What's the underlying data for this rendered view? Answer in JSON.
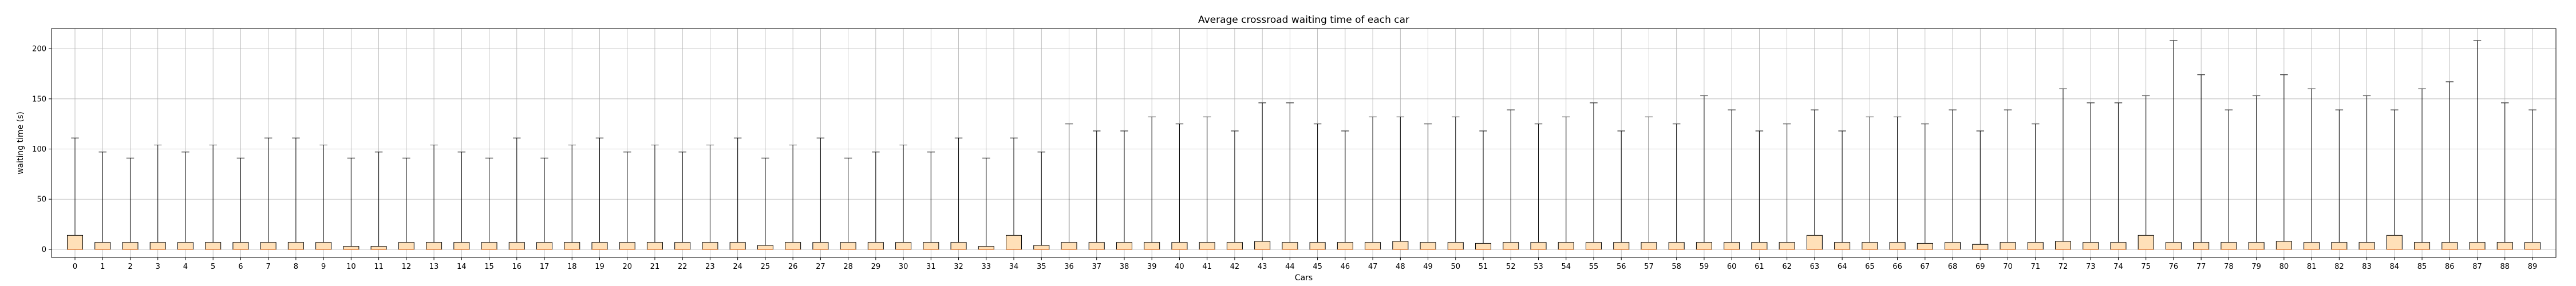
{
  "chart_data": {
    "type": "boxplot",
    "title": "Average crossroad waiting time of each car",
    "xlabel": "Cars",
    "ylabel": "waiting time (s)",
    "ylim": [
      -8,
      220
    ],
    "yticks": [
      0,
      50,
      100,
      150,
      200
    ],
    "grid": true,
    "box_color": "#ffe0b8",
    "median_color": "#e0803c",
    "categories": [
      "0",
      "1",
      "2",
      "3",
      "4",
      "5",
      "6",
      "7",
      "8",
      "9",
      "10",
      "11",
      "12",
      "13",
      "14",
      "15",
      "16",
      "17",
      "18",
      "19",
      "20",
      "21",
      "22",
      "23",
      "24",
      "25",
      "26",
      "27",
      "28",
      "29",
      "30",
      "31",
      "32",
      "33",
      "34",
      "35",
      "36",
      "37",
      "38",
      "39",
      "40",
      "41",
      "42",
      "43",
      "44",
      "45",
      "46",
      "47",
      "48",
      "49",
      "50",
      "51",
      "52",
      "53",
      "54",
      "55",
      "56",
      "57",
      "58",
      "59",
      "60",
      "61",
      "62",
      "63",
      "64",
      "65",
      "66",
      "67",
      "68",
      "69",
      "70",
      "71",
      "72",
      "73",
      "74",
      "75",
      "76",
      "77",
      "78",
      "79",
      "80",
      "81",
      "82",
      "83",
      "84",
      "85",
      "86",
      "87",
      "88",
      "89"
    ],
    "q1": [
      0,
      0,
      0,
      0,
      0,
      0,
      0,
      0,
      0,
      0,
      0,
      0,
      0,
      0,
      0,
      0,
      0,
      0,
      0,
      0,
      0,
      0,
      0,
      0,
      0,
      0,
      0,
      0,
      0,
      0,
      0,
      0,
      0,
      0,
      0,
      0,
      0,
      0,
      0,
      0,
      0,
      0,
      0,
      0,
      0,
      0,
      0,
      0,
      0,
      0,
      0,
      0,
      0,
      0,
      0,
      0,
      0,
      0,
      0,
      0,
      0,
      0,
      0,
      0,
      0,
      0,
      0,
      0,
      0,
      0,
      0,
      0,
      0,
      0,
      0,
      0,
      0,
      0,
      0,
      0,
      0,
      0,
      0,
      0,
      0,
      0,
      0,
      0,
      0,
      0
    ],
    "median": [
      0,
      0,
      0,
      0,
      0,
      0,
      0,
      0,
      0,
      0,
      0,
      0,
      0,
      0,
      0,
      0,
      0,
      0,
      0,
      0,
      0,
      0,
      0,
      0,
      0,
      0,
      0,
      0,
      0,
      0,
      0,
      0,
      0,
      0,
      0,
      0,
      0,
      0,
      0,
      0,
      0,
      0,
      0,
      0,
      0,
      0,
      0,
      0,
      0,
      0,
      0,
      0,
      0,
      0,
      0,
      0,
      0,
      0,
      0,
      0,
      0,
      0,
      0,
      0,
      0,
      0,
      0,
      0,
      0,
      0,
      0,
      0,
      0,
      0,
      0,
      0,
      0,
      0,
      0,
      0,
      0,
      0,
      0,
      0,
      0,
      0,
      0,
      0,
      0,
      0
    ],
    "q3": [
      14,
      7,
      7,
      7,
      7,
      7,
      7,
      7,
      7,
      7,
      3,
      3,
      7,
      7,
      7,
      7,
      7,
      7,
      7,
      7,
      7,
      7,
      7,
      7,
      7,
      4,
      7,
      7,
      7,
      7,
      7,
      7,
      7,
      3,
      14,
      4,
      7,
      7,
      7,
      7,
      7,
      7,
      7,
      8,
      7,
      7,
      7,
      7,
      8,
      7,
      7,
      6,
      7,
      7,
      7,
      7,
      7,
      7,
      7,
      7,
      7,
      7,
      7,
      14,
      7,
      7,
      7,
      6,
      7,
      5,
      7,
      7,
      8,
      7,
      7,
      14,
      7,
      7,
      7,
      7,
      8,
      7,
      7,
      7,
      14,
      7,
      7,
      7,
      7,
      7
    ],
    "whisker_high": [
      111,
      97,
      91,
      104,
      97,
      104,
      91,
      111,
      111,
      104,
      91,
      97,
      91,
      104,
      97,
      91,
      111,
      91,
      104,
      111,
      97,
      104,
      97,
      104,
      111,
      91,
      104,
      111,
      91,
      97,
      104,
      97,
      111,
      91,
      111,
      97,
      125,
      118,
      118,
      132,
      125,
      132,
      118,
      146,
      146,
      125,
      118,
      132,
      132,
      125,
      132,
      118,
      139,
      125,
      132,
      146,
      118,
      132,
      125,
      153,
      139,
      118,
      125,
      139,
      118,
      132,
      132,
      125,
      139,
      118,
      139,
      125,
      160,
      146,
      146,
      153,
      208,
      174,
      139,
      153,
      174,
      160,
      139,
      153,
      139,
      160,
      167,
      208,
      146,
      139
    ]
  }
}
